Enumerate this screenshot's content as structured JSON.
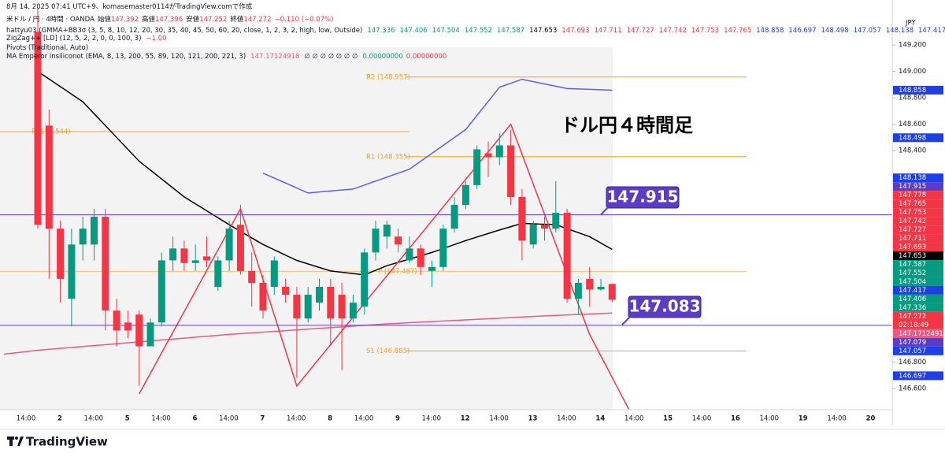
{
  "header": {
    "created": "8月 14, 2025 07:41 UTC+9、komasemaster0114がTradingView.comで作成",
    "symbol": "米ドル / 円 · 4時間 · OANDA",
    "ohlc_labels": [
      "始値",
      "高値",
      "安値",
      "終値"
    ],
    "change": "−0.110 (−0.07%)",
    "indicator1": "hattyu03 (GMMA+BB3σ (3, 5, 8, 10, 12, 20, 30, 35, 40, 45, 50, 60, 20, close, 1, 2, 3, 2, high, low, Outside)",
    "zigzag": "ZigZag++ [LD] (12, 5, 2, 2, 0, 0, 100, 3)",
    "zigzag_value": "−1.00",
    "pivots": "Pivots (Traditional, Auto)",
    "ma": "MA Emperor insiliconot (EMA, 8, 13, 200, 55, 89, 120, 121, 200, 221, 3)",
    "ma_na": "∅ ∅ ∅ ∅ ∅ ∅ ∅",
    "ma_zero": [
      "0.00000000",
      "0.00000000"
    ]
  },
  "footer": {
    "brand": "TradingView"
  },
  "chart_data": {
    "type": "candlestick",
    "title": "ドル円４時間足",
    "currency": "JPY",
    "ylim": [
      146.44,
      149.54
    ],
    "yticks": [
      {
        "value": 146.6,
        "label": "146.600"
      },
      {
        "value": 146.8,
        "label": "146.800"
      },
      {
        "value": 148.4,
        "label": "148.400"
      },
      {
        "value": 148.6,
        "label": "148.600"
      },
      {
        "value": 148.8,
        "label": "148.800"
      },
      {
        "value": 149,
        "label": "149.000"
      },
      {
        "value": 149.2,
        "label": "149.200"
      }
    ],
    "xticks": [
      "14:00",
      "2",
      "14:00",
      "5",
      "14:00",
      "6",
      "14:00",
      "7",
      "14:00",
      "8",
      "14:00",
      "9",
      "14:00",
      "12",
      "14:00",
      "13",
      "14:00",
      "14",
      "14:00",
      "15",
      "14:00",
      "16",
      "14:00",
      "19",
      "14:00",
      "20"
    ],
    "up_color": "#089981",
    "down_color": "#f23645",
    "open": [
      149.3,
      148.59,
      147.81,
      147.28,
      147.69,
      147.69,
      147.9,
      147.19,
      147.1,
      147.16,
      146.92,
      147.1,
      147.57,
      147.66,
      147.55,
      147.6,
      147.37,
      147.57,
      147.84,
      147.49,
      147.4,
      147.37,
      147.37,
      147.31,
      147.13,
      147.25,
      147.37,
      147.31,
      147.13,
      147.22,
      147.63,
      147.75,
      147.75,
      147.57,
      147.66,
      147.49,
      147.52,
      147.81,
      147.99,
      148.14,
      148.38,
      148.35,
      148.44,
      148.05,
      147.69,
      147.84,
      147.81,
      147.93,
      147.28,
      147.43,
      147.35,
      147.392
    ],
    "high": [
      149.48,
      148.71,
      147.87,
      147.81,
      147.9,
      147.96,
      147.96,
      147.28,
      147.19,
      147.19,
      147.13,
      147.63,
      147.75,
      147.72,
      147.69,
      147.75,
      147.6,
      147.87,
      147.99,
      147.63,
      147.46,
      147.6,
      147.43,
      147.37,
      147.37,
      147.43,
      147.43,
      147.4,
      147.31,
      147.66,
      147.87,
      147.87,
      147.81,
      147.75,
      147.69,
      147.57,
      147.84,
      148.05,
      148.17,
      148.44,
      148.47,
      148.53,
      148.56,
      148.11,
      147.87,
      147.9,
      148.17,
      147.96,
      147.43,
      147.52,
      147.43,
      147.396
    ],
    "low": [
      147.81,
      147.43,
      147.25,
      147.07,
      147.57,
      147.57,
      147.04,
      146.92,
      146.98,
      146.62,
      146.92,
      147.07,
      147.49,
      147.49,
      147.49,
      147.52,
      147.34,
      147.49,
      147.46,
      147.22,
      147.13,
      147.31,
      147.25,
      146.68,
      147.1,
      147.19,
      146.92,
      146.74,
      147.1,
      147.16,
      147.57,
      147.66,
      147.63,
      147.55,
      147.46,
      147.37,
      147.49,
      147.78,
      147.96,
      148.11,
      148.2,
      148.29,
      147.99,
      147.57,
      147.66,
      147.72,
      147.78,
      147.25,
      147.16,
      147.22,
      147.34,
      147.252
    ],
    "close": [
      147.84,
      147.81,
      147.43,
      147.69,
      147.81,
      147.9,
      147.19,
      147.04,
      147.04,
      146.92,
      147.1,
      147.57,
      147.66,
      147.55,
      147.57,
      147.57,
      147.57,
      147.81,
      147.49,
      147.4,
      147.19,
      147.57,
      147.31,
      147.13,
      147.31,
      147.37,
      147.13,
      147.13,
      147.25,
      147.63,
      147.81,
      147.84,
      147.69,
      147.66,
      147.52,
      147.52,
      147.81,
      147.99,
      148.14,
      148.41,
      148.35,
      148.44,
      148.05,
      147.72,
      147.84,
      147.81,
      147.93,
      147.28,
      147.4,
      147.35,
      147.37,
      147.272
    ],
    "lines": [
      {
        "color": "#000000",
        "x": [
          0,
          4,
          9,
          13,
          17,
          20,
          23,
          26,
          29,
          31,
          35,
          38,
          41,
          43,
          46,
          49,
          51
        ],
        "values": [
          149.0,
          148.77,
          148.32,
          148.05,
          147.84,
          147.69,
          147.57,
          147.49,
          147.46,
          147.53,
          147.63,
          147.72,
          147.8,
          147.85,
          147.84,
          147.75,
          147.653
        ]
      },
      {
        "color": "#e75a86",
        "x": [
          -3,
          0,
          17,
          31,
          45,
          51
        ],
        "values": [
          146.86,
          146.89,
          147.01,
          147.09,
          147.15,
          147.17124918
        ]
      },
      {
        "color": "#5b5ef0",
        "x": [
          20,
          24,
          28,
          33,
          38,
          41,
          43,
          47,
          51
        ],
        "values": [
          148.23,
          148.08,
          148.11,
          148.26,
          148.56,
          148.88,
          148.94,
          148.87,
          148.858
        ]
      },
      {
        "color": "#f23645",
        "x": [
          9,
          18,
          23,
          42,
          49,
          52.5
        ],
        "values": [
          146.56,
          147.96,
          146.62,
          148.6,
          147.01,
          146.44
        ]
      }
    ],
    "levels": [
      {
        "label": "R2 (148.957)",
        "value": 148.957
      },
      {
        "label": "P (148.544)",
        "value": 148.544
      },
      {
        "label": "R1 (148.355)",
        "value": 148.355
      },
      {
        "label": "P (147.487)",
        "value": 147.487
      },
      {
        "label": "S1 (146.885)",
        "value": 146.885
      }
    ],
    "level_color": "#f7a21b",
    "hlines": [
      {
        "value": 147.915,
        "color": "#5b3cc4"
      },
      {
        "value": 147.079,
        "color": "#5b3cc4"
      }
    ],
    "callout_extra": 147.083,
    "indicator_values": [
      {
        "value": 147.336,
        "color": "#089981"
      },
      {
        "value": 147.406,
        "color": "#089981"
      },
      {
        "value": 147.504,
        "color": "#089981"
      },
      {
        "value": 147.552,
        "color": "#089981"
      },
      {
        "value": 147.587,
        "color": "#089981"
      },
      {
        "value": 147.653,
        "color": "#000000"
      },
      {
        "value": 147.693,
        "color": "#f23645"
      },
      {
        "value": 147.711,
        "color": "#f23645"
      },
      {
        "value": 147.727,
        "color": "#f23645"
      },
      {
        "value": 147.742,
        "color": "#f23645"
      },
      {
        "value": 147.753,
        "color": "#f23645"
      },
      {
        "value": 147.765,
        "color": "#f23645"
      },
      {
        "value": 148.858,
        "color": "#1e3ee6"
      },
      {
        "value": 146.697,
        "color": "#1e3ee6"
      },
      {
        "value": 148.498,
        "color": "#1e3ee6"
      },
      {
        "value": 147.057,
        "color": "#1e3ee6"
      },
      {
        "value": 148.138,
        "color": "#1e3ee6"
      },
      {
        "value": 147.417,
        "color": "#1e3ee6"
      },
      {
        "value": 147.778,
        "color": "#f23645"
      }
    ],
    "ma_value": 147.17124918,
    "ma_color": "#e75a86",
    "countdown": "02:18:49"
  }
}
